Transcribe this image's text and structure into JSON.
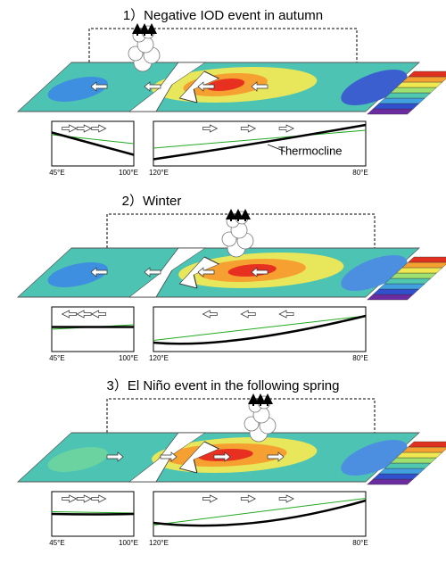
{
  "panels": [
    {
      "title": "1）Negative IOD event in autumn",
      "left_axis": [
        "45°E",
        "100°E"
      ],
      "right_axis": [
        "120°E",
        "80°E"
      ],
      "annotation": "Thermocline"
    },
    {
      "title": "2）Winter",
      "left_axis": [
        "45°E",
        "100°E"
      ],
      "right_axis": [
        "120°E",
        "80°E"
      ]
    },
    {
      "title": "3）El Niño event in the following spring",
      "left_axis": [
        "45°E",
        "100°E"
      ],
      "right_axis": [
        "120°E",
        "80°E"
      ]
    }
  ]
}
